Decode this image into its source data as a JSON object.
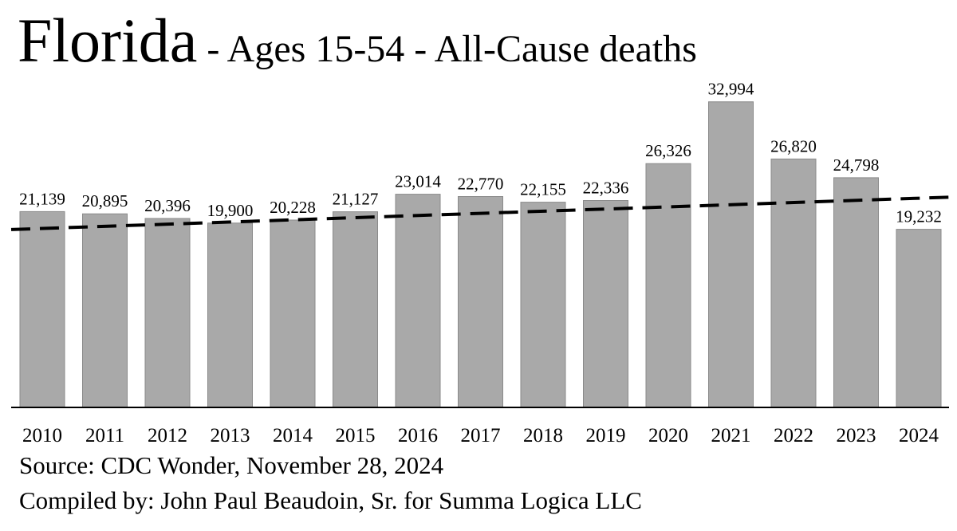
{
  "title": {
    "main": "Florida",
    "sub": " - Ages 15-54 - All-Cause deaths"
  },
  "footer": {
    "source": "Source:  CDC Wonder, November 28, 2024",
    "credit": "Compiled by:  John Paul Beaudoin, Sr. for Summa Logica LLC"
  },
  "chart_data": {
    "type": "bar",
    "categories": [
      "2010",
      "2011",
      "2012",
      "2013",
      "2014",
      "2015",
      "2016",
      "2017",
      "2018",
      "2019",
      "2020",
      "2021",
      "2022",
      "2023",
      "2024"
    ],
    "values": [
      21139,
      20895,
      20396,
      19900,
      20228,
      21127,
      23014,
      22770,
      22155,
      22336,
      26326,
      32994,
      26820,
      24798,
      19232
    ],
    "value_labels": [
      "21,139",
      "20,895",
      "20,396",
      "19,900",
      "20,228",
      "21,127",
      "23,014",
      "22,770",
      "22,155",
      "22,336",
      "26,326",
      "32,994",
      "26,820",
      "24,798",
      "19,232"
    ],
    "trendline": {
      "style": "dashed",
      "start_value": 19200,
      "end_value": 22700
    },
    "ylim": [
      0,
      34000
    ],
    "grid": false,
    "bar_color": "#a9a9a9",
    "bar_edge_color": "#8a8a8a"
  }
}
